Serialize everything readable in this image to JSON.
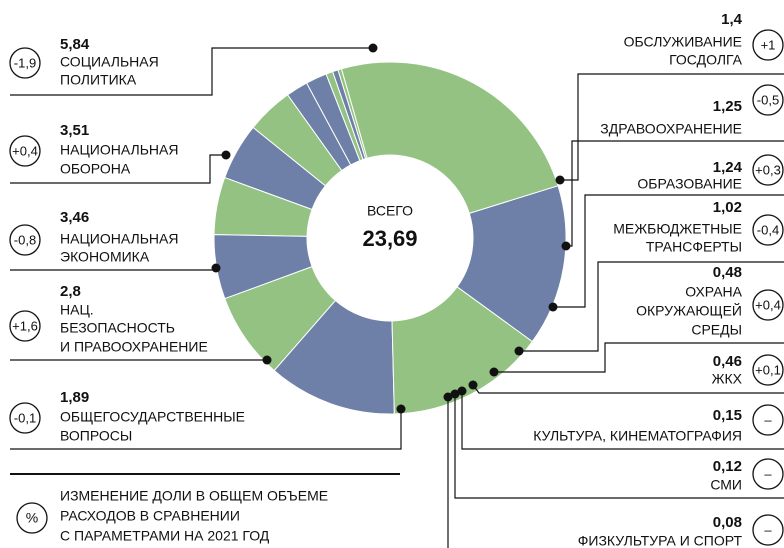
{
  "chart_data": {
    "type": "donut",
    "total": {
      "label": "ВСЕГО",
      "value": 23.69,
      "value_label": "23,69"
    },
    "categories": [
      [
        "СОЦИАЛЬНАЯ",
        "ПОЛИТИКА"
      ],
      [
        "НАЦИОНАЛЬНАЯ",
        "ОБОРОНА"
      ],
      [
        "НАЦИОНАЛЬНАЯ",
        "ЭКОНОМИКА"
      ],
      [
        "НАЦ.",
        "БЕЗОПАСНОСТЬ",
        "И ПРАВООХРАНЕНИЕ"
      ],
      [
        "ОБЩЕГОСУДАРСТВЕННЫЕ",
        "ВОПРОСЫ"
      ],
      [
        "ОБСЛУЖИВАНИЕ",
        "ГОСДОЛГА"
      ],
      [
        "ЗДРАВООХРАНЕНИЕ"
      ],
      [
        "ОБРАЗОВАНИЕ"
      ],
      [
        "МЕЖБЮДЖЕТНЫЕ",
        "ТРАНСФЕРТЫ"
      ],
      [
        "ОХРАНА",
        "ОКРУЖАЮЩЕЙ",
        "СРЕДЫ"
      ],
      [
        "ЖКХ"
      ],
      [
        "КУЛЬТУРА, КИНЕМАТОГРАФИЯ"
      ],
      [
        "СМИ"
      ],
      [
        "ФИЗКУЛЬТУРА И СПОРТ"
      ]
    ],
    "values": [
      5.84,
      3.51,
      3.46,
      2.8,
      1.89,
      1.4,
      1.25,
      1.24,
      1.02,
      0.48,
      0.46,
      0.15,
      0.12,
      0.08
    ],
    "value_labels": [
      "5,84",
      "3,51",
      "3,46",
      "2,8",
      "1,89",
      "1,4",
      "1,25",
      "1,24",
      "1,02",
      "0,48",
      "0,46",
      "0,15",
      "0,12",
      "0,08"
    ],
    "changes": [
      -1.9,
      0.4,
      -0.8,
      1.6,
      -0.1,
      1,
      -0.5,
      0.3,
      -0.4,
      0.4,
      0.1,
      null,
      null,
      null
    ],
    "change_labels": [
      "-1,9",
      "+0,4",
      "-0,8",
      "+1,6",
      "-0,1",
      "+1",
      "-0,5",
      "+0,3",
      "-0,4",
      "+0,4",
      "+0,1",
      "–",
      "–",
      "–"
    ],
    "colors": [
      "#93c283",
      "#6f80a8",
      "#93c283",
      "#6f80a8",
      "#93c283",
      "#6f80a8",
      "#93c283",
      "#6f80a8",
      "#93c283",
      "#6f80a8",
      "#6f80a8",
      "#93c283",
      "#6f80a8",
      "#93c283"
    ],
    "legend": {
      "symbol": "%",
      "text": [
        "ИЗМЕНЕНИЕ ДОЛИ В ОБЩЕМ ОБЪЕМЕ",
        "РАСХОДОВ В СРАВНЕНИИ",
        "С ПАРАМЕТРАМИ НА 2021 ГОД"
      ]
    }
  }
}
